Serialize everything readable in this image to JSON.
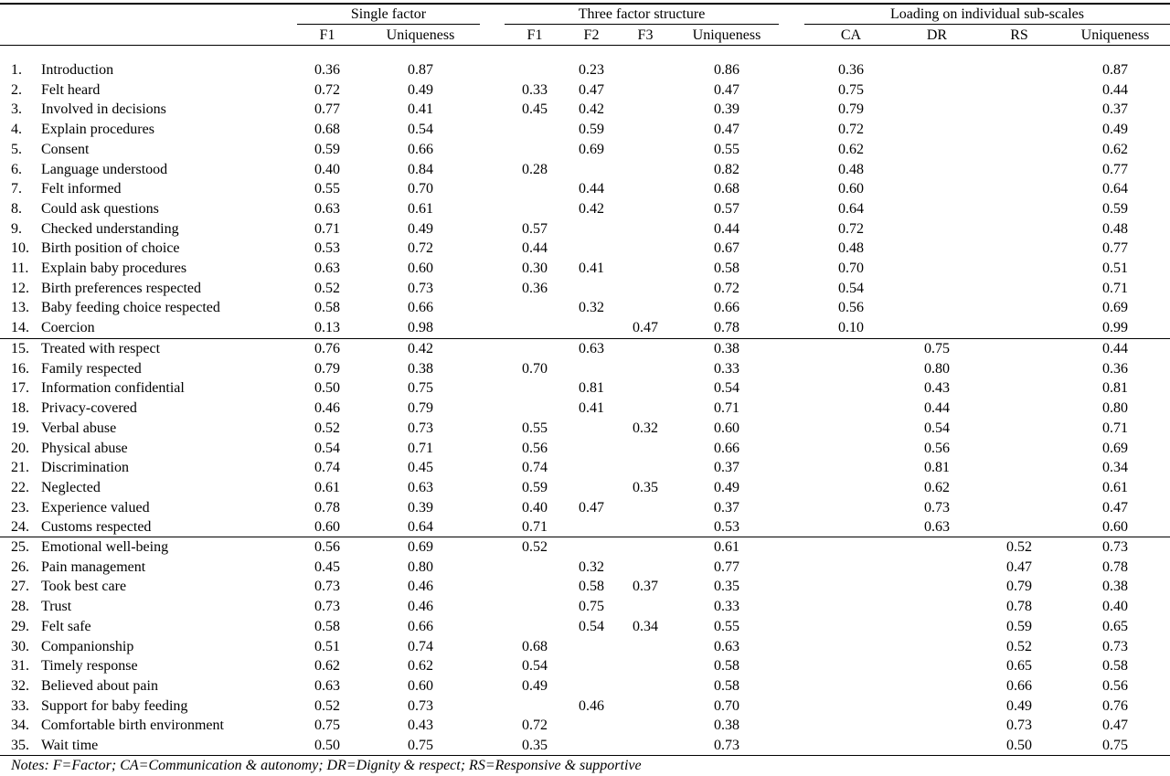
{
  "header": {
    "groups": [
      "Single factor",
      "Three factor structure",
      "Loading on individual sub-scales"
    ],
    "columns": [
      "F1",
      "Uniqueness",
      "F1",
      "F2",
      "F3",
      "Uniqueness",
      "CA",
      "DR",
      "RS",
      "Uniqueness"
    ]
  },
  "rows": [
    {
      "n": "1.",
      "item": "Introduction",
      "sf1": "0.36",
      "su": "0.87",
      "t1": "",
      "t2": "0.23",
      "t3": "",
      "tu": "0.86",
      "ca": "0.36",
      "dr": "",
      "rs": "",
      "iu": "0.87"
    },
    {
      "n": "2.",
      "item": "Felt heard",
      "sf1": "0.72",
      "su": "0.49",
      "t1": "0.33",
      "t2": "0.47",
      "t3": "",
      "tu": "0.47",
      "ca": "0.75",
      "dr": "",
      "rs": "",
      "iu": "0.44"
    },
    {
      "n": "3.",
      "item": "Involved in decisions",
      "sf1": "0.77",
      "su": "0.41",
      "t1": "0.45",
      "t2": "0.42",
      "t3": "",
      "tu": "0.39",
      "ca": "0.79",
      "dr": "",
      "rs": "",
      "iu": "0.37"
    },
    {
      "n": "4.",
      "item": "Explain procedures",
      "sf1": "0.68",
      "su": "0.54",
      "t1": "",
      "t2": "0.59",
      "t3": "",
      "tu": "0.47",
      "ca": "0.72",
      "dr": "",
      "rs": "",
      "iu": "0.49"
    },
    {
      "n": "5.",
      "item": "Consent",
      "sf1": "0.59",
      "su": "0.66",
      "t1": "",
      "t2": "0.69",
      "t3": "",
      "tu": "0.55",
      "ca": "0.62",
      "dr": "",
      "rs": "",
      "iu": "0.62"
    },
    {
      "n": "6.",
      "item": "Language understood",
      "sf1": "0.40",
      "su": "0.84",
      "t1": "0.28",
      "t2": "",
      "t3": "",
      "tu": "0.82",
      "ca": "0.48",
      "dr": "",
      "rs": "",
      "iu": "0.77"
    },
    {
      "n": "7.",
      "item": "Felt informed",
      "sf1": "0.55",
      "su": "0.70",
      "t1": "",
      "t2": "0.44",
      "t3": "",
      "tu": "0.68",
      "ca": "0.60",
      "dr": "",
      "rs": "",
      "iu": "0.64"
    },
    {
      "n": "8.",
      "item": "Could ask questions",
      "sf1": "0.63",
      "su": "0.61",
      "t1": "",
      "t2": "0.42",
      "t3": "",
      "tu": "0.57",
      "ca": "0.64",
      "dr": "",
      "rs": "",
      "iu": "0.59"
    },
    {
      "n": "9.",
      "item": "Checked understanding",
      "sf1": "0.71",
      "su": "0.49",
      "t1": "0.57",
      "t2": "",
      "t3": "",
      "tu": "0.44",
      "ca": "0.72",
      "dr": "",
      "rs": "",
      "iu": "0.48"
    },
    {
      "n": "10.",
      "item": "Birth position of choice",
      "sf1": "0.53",
      "su": "0.72",
      "t1": "0.44",
      "t2": "",
      "t3": "",
      "tu": "0.67",
      "ca": "0.48",
      "dr": "",
      "rs": "",
      "iu": "0.77"
    },
    {
      "n": "11.",
      "item": "Explain baby procedures",
      "sf1": "0.63",
      "su": "0.60",
      "t1": "0.30",
      "t2": "0.41",
      "t3": "",
      "tu": "0.58",
      "ca": "0.70",
      "dr": "",
      "rs": "",
      "iu": "0.51"
    },
    {
      "n": "12.",
      "item": "Birth preferences respected",
      "sf1": "0.52",
      "su": "0.73",
      "t1": "0.36",
      "t2": "",
      "t3": "",
      "tu": "0.72",
      "ca": "0.54",
      "dr": "",
      "rs": "",
      "iu": "0.71"
    },
    {
      "n": "13.",
      "item": "Baby feeding choice respected",
      "sf1": "0.58",
      "su": "0.66",
      "t1": "",
      "t2": "0.32",
      "t3": "",
      "tu": "0.66",
      "ca": "0.56",
      "dr": "",
      "rs": "",
      "iu": "0.69"
    },
    {
      "n": "14.",
      "item": "Coercion",
      "sf1": "0.13",
      "su": "0.98",
      "t1": "",
      "t2": "",
      "t3": "0.47",
      "tu": "0.78",
      "ca": "0.10",
      "dr": "",
      "rs": "",
      "iu": "0.99"
    },
    {
      "n": "15.",
      "item": "Treated with respect",
      "sf1": "0.76",
      "su": "0.42",
      "t1": "",
      "t2": "0.63",
      "t3": "",
      "tu": "0.38",
      "ca": "",
      "dr": "0.75",
      "rs": "",
      "iu": "0.44"
    },
    {
      "n": "16.",
      "item": "Family respected",
      "sf1": "0.79",
      "su": "0.38",
      "t1": "0.70",
      "t2": "",
      "t3": "",
      "tu": "0.33",
      "ca": "",
      "dr": "0.80",
      "rs": "",
      "iu": "0.36"
    },
    {
      "n": "17.",
      "item": "Information confidential",
      "sf1": "0.50",
      "su": "0.75",
      "t1": "",
      "t2": "0.81",
      "t3": "",
      "tu": "0.54",
      "ca": "",
      "dr": "0.43",
      "rs": "",
      "iu": "0.81"
    },
    {
      "n": "18.",
      "item": "Privacy-covered",
      "sf1": "0.46",
      "su": "0.79",
      "t1": "",
      "t2": "0.41",
      "t3": "",
      "tu": "0.71",
      "ca": "",
      "dr": "0.44",
      "rs": "",
      "iu": "0.80"
    },
    {
      "n": "19.",
      "item": "Verbal abuse",
      "sf1": "0.52",
      "su": "0.73",
      "t1": "0.55",
      "t2": "",
      "t3": "0.32",
      "tu": "0.60",
      "ca": "",
      "dr": "0.54",
      "rs": "",
      "iu": "0.71"
    },
    {
      "n": "20.",
      "item": "Physical abuse",
      "sf1": "0.54",
      "su": "0.71",
      "t1": "0.56",
      "t2": "",
      "t3": "",
      "tu": "0.66",
      "ca": "",
      "dr": "0.56",
      "rs": "",
      "iu": "0.69"
    },
    {
      "n": "21.",
      "item": "Discrimination",
      "sf1": "0.74",
      "su": "0.45",
      "t1": "0.74",
      "t2": "",
      "t3": "",
      "tu": "0.37",
      "ca": "",
      "dr": "0.81",
      "rs": "",
      "iu": "0.34"
    },
    {
      "n": "22.",
      "item": "Neglected",
      "sf1": "0.61",
      "su": "0.63",
      "t1": "0.59",
      "t2": "",
      "t3": "0.35",
      "tu": "0.49",
      "ca": "",
      "dr": "0.62",
      "rs": "",
      "iu": "0.61"
    },
    {
      "n": "23.",
      "item": "Experience valued",
      "sf1": "0.78",
      "su": "0.39",
      "t1": "0.40",
      "t2": "0.47",
      "t3": "",
      "tu": "0.37",
      "ca": "",
      "dr": "0.73",
      "rs": "",
      "iu": "0.47"
    },
    {
      "n": "24.",
      "item": "Customs respected",
      "sf1": "0.60",
      "su": "0.64",
      "t1": "0.71",
      "t2": "",
      "t3": "",
      "tu": "0.53",
      "ca": "",
      "dr": "0.63",
      "rs": "",
      "iu": "0.60"
    },
    {
      "n": "25.",
      "item": "Emotional well-being",
      "sf1": "0.56",
      "su": "0.69",
      "t1": "0.52",
      "t2": "",
      "t3": "",
      "tu": "0.61",
      "ca": "",
      "dr": "",
      "rs": "0.52",
      "iu": "0.73"
    },
    {
      "n": "26.",
      "item": "Pain management",
      "sf1": "0.45",
      "su": "0.80",
      "t1": "",
      "t2": "0.32",
      "t3": "",
      "tu": "0.77",
      "ca": "",
      "dr": "",
      "rs": "0.47",
      "iu": "0.78"
    },
    {
      "n": "27.",
      "item": "Took best care",
      "sf1": "0.73",
      "su": "0.46",
      "t1": "",
      "t2": "0.58",
      "t3": "0.37",
      "tu": "0.35",
      "ca": "",
      "dr": "",
      "rs": "0.79",
      "iu": "0.38"
    },
    {
      "n": "28.",
      "item": "Trust",
      "sf1": "0.73",
      "su": "0.46",
      "t1": "",
      "t2": "0.75",
      "t3": "",
      "tu": "0.33",
      "ca": "",
      "dr": "",
      "rs": "0.78",
      "iu": "0.40"
    },
    {
      "n": "29.",
      "item": "Felt safe",
      "sf1": "0.58",
      "su": "0.66",
      "t1": "",
      "t2": "0.54",
      "t3": "0.34",
      "tu": "0.55",
      "ca": "",
      "dr": "",
      "rs": "0.59",
      "iu": "0.65"
    },
    {
      "n": "30.",
      "item": "Companionship",
      "sf1": "0.51",
      "su": "0.74",
      "t1": "0.68",
      "t2": "",
      "t3": "",
      "tu": "0.63",
      "ca": "",
      "dr": "",
      "rs": "0.52",
      "iu": "0.73"
    },
    {
      "n": "31.",
      "item": "Timely response",
      "sf1": "0.62",
      "su": "0.62",
      "t1": "0.54",
      "t2": "",
      "t3": "",
      "tu": "0.58",
      "ca": "",
      "dr": "",
      "rs": "0.65",
      "iu": "0.58"
    },
    {
      "n": "32.",
      "item": "Believed about pain",
      "sf1": "0.63",
      "su": "0.60",
      "t1": "0.49",
      "t2": "",
      "t3": "",
      "tu": "0.58",
      "ca": "",
      "dr": "",
      "rs": "0.66",
      "iu": "0.56"
    },
    {
      "n": "33.",
      "item": "Support for baby feeding",
      "sf1": "0.52",
      "su": "0.73",
      "t1": "",
      "t2": "0.46",
      "t3": "",
      "tu": "0.70",
      "ca": "",
      "dr": "",
      "rs": "0.49",
      "iu": "0.76"
    },
    {
      "n": "34.",
      "item": "Comfortable birth environment",
      "sf1": "0.75",
      "su": "0.43",
      "t1": "0.72",
      "t2": "",
      "t3": "",
      "tu": "0.38",
      "ca": "",
      "dr": "",
      "rs": "0.73",
      "iu": "0.47"
    },
    {
      "n": "35.",
      "item": "Wait time",
      "sf1": "0.50",
      "su": "0.75",
      "t1": "0.35",
      "t2": "",
      "t3": "",
      "tu": "0.73",
      "ca": "",
      "dr": "",
      "rs": "0.50",
      "iu": "0.75"
    }
  ],
  "notes": "Notes: F=Factor; CA=Communication & autonomy; DR=Dignity & respect; RS=Responsive & supportive"
}
